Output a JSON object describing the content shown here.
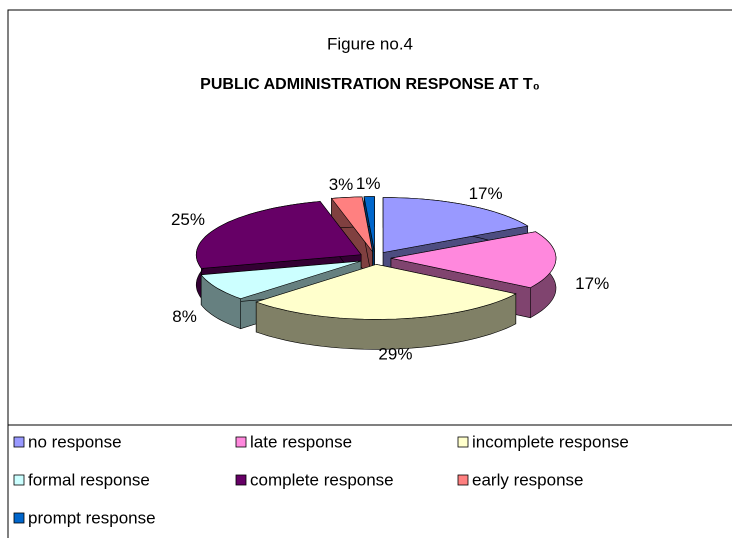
{
  "chart_data": {
    "type": "pie3d",
    "title": "Figure no.4",
    "subtitle": "PUBLIC ADMINISTRATION RESPONSE AT T₀",
    "categories": [
      "no response",
      "late response",
      "incomplete response",
      "formal response",
      "complete response",
      "early response",
      "prompt response"
    ],
    "values": [
      17,
      17,
      29,
      8,
      25,
      3,
      1
    ],
    "value_labels": [
      "17%",
      "17%",
      "29%",
      "8%",
      "25%",
      "3%",
      "1%"
    ],
    "colors": [
      "#9999ff",
      "#ff88dd",
      "#ffffcc",
      "#ccffff",
      "#660066",
      "#ff8080",
      "#0066cc"
    ],
    "legend": "bottom"
  }
}
